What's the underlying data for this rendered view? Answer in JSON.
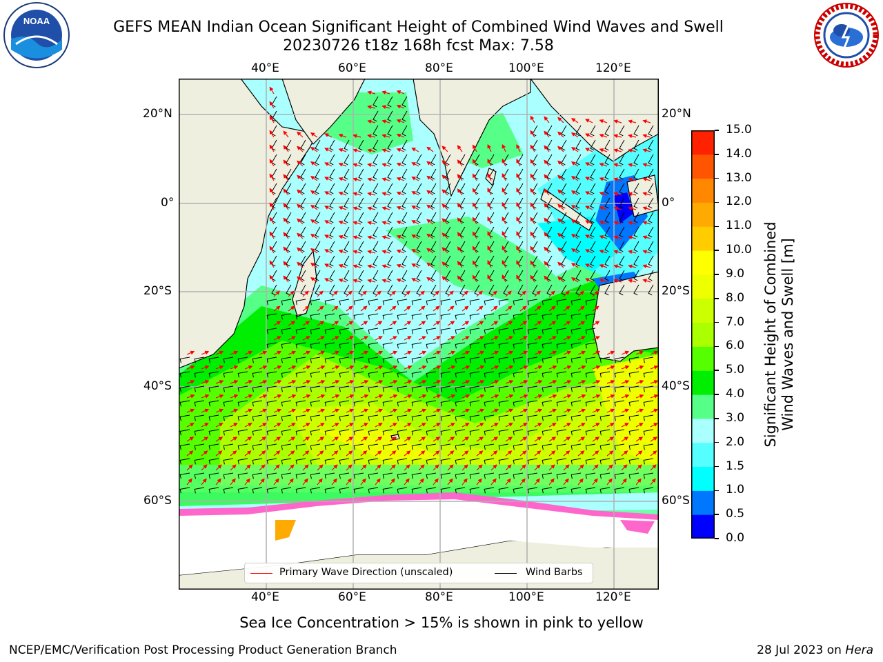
{
  "title": {
    "line1": "GEFS MEAN Indian Ocean Significant Height of Combined Wind Waves and Swell",
    "line2": "20230726 t18z 168h fcst   Max: 7.58"
  },
  "map": {
    "top_lon_labels": [
      "40°E",
      "60°E",
      "80°E",
      "100°E",
      "120°E"
    ],
    "bottom_lon_labels": [
      "40°E",
      "60°E",
      "80°E",
      "100°E",
      "120°E"
    ],
    "left_lat_labels": [
      "20°N",
      "0°",
      "20°S",
      "40°S",
      "60°S"
    ],
    "right_lat_labels": [
      "20°N",
      "0°",
      "20°S",
      "40°S",
      "60°S"
    ],
    "colors": {
      "land": "#efefdf",
      "ice": "#ffffff",
      "grid": "#b0b0b0",
      "arrow": "#ff0000",
      "barb": "#000000"
    }
  },
  "legend": {
    "wave_direction": "Primary Wave Direction (unscaled)",
    "wind_barbs": "Wind Barbs"
  },
  "colorbar": {
    "label_line1": "Significant Height of Combined",
    "label_line2": "Wind Waves and Swell [m]",
    "ticks": [
      "0.0",
      "0.5",
      "1.0",
      "1.5",
      "2.0",
      "3.0",
      "4.0",
      "5.0",
      "6.0",
      "7.0",
      "8.0",
      "9.0",
      "10.0",
      "11.0",
      "12.0",
      "13.0",
      "14.0",
      "15.0"
    ],
    "colors": [
      "#0000ff",
      "#0077ff",
      "#00ffff",
      "#55ffff",
      "#aaffff",
      "#55ff88",
      "#00ee00",
      "#55ff00",
      "#aaff00",
      "#ccff00",
      "#eeff00",
      "#ffff00",
      "#ffcc00",
      "#ffaa00",
      "#ff8800",
      "#ff5500",
      "#ff2200"
    ]
  },
  "sea_ice_note": "Sea Ice Concentration > 15% is shown in pink to yellow",
  "footer": {
    "left": "NCEP/EMC/Verification Post Processing Product Generation Branch",
    "right_date": "28 Jul 2023 on",
    "right_host": "Hera"
  },
  "logos": {
    "noaa": "NOAA",
    "nws": "NATIONAL WEATHER SERVICE"
  }
}
